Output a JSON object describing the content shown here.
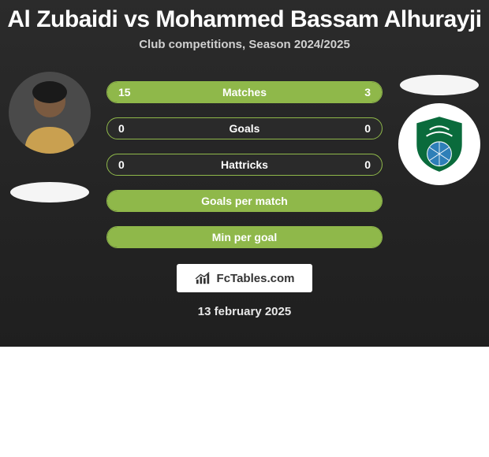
{
  "title": "Al Zubaidi vs Mohammed Bassam Alhurayji",
  "subtitle": "Club competitions, Season 2024/2025",
  "date": "13 february 2025",
  "footer_brand": "FcTables.com",
  "colors": {
    "accent": "#8fb84a",
    "card_bg_top": "#2b2b2b",
    "card_bg_bottom": "#1f1f1f",
    "text": "#ffffff",
    "subtitle": "#d0d0d0",
    "oval": "#f5f5f5",
    "logo_bg": "#ffffff",
    "logo_text": "#333333"
  },
  "player_left": {
    "name": "Al Zubaidi",
    "avatar_bg": "#3a3a3a"
  },
  "player_right": {
    "name": "Mohammed Bassam Alhurayji",
    "crest_bg": "#ffffff",
    "crest_shield": "#0a6b3c",
    "crest_ball": "#2e7fb8"
  },
  "stats": [
    {
      "label": "Matches",
      "left_val": "15",
      "right_val": "3",
      "left_pct": 83,
      "right_pct": 17
    },
    {
      "label": "Goals",
      "left_val": "0",
      "right_val": "0",
      "left_pct": 0,
      "right_pct": 0
    },
    {
      "label": "Hattricks",
      "left_val": "0",
      "right_val": "0",
      "left_pct": 0,
      "right_pct": 0
    },
    {
      "label": "Goals per match",
      "left_val": "",
      "right_val": "",
      "left_pct": 100,
      "right_pct": 0
    },
    {
      "label": "Min per goal",
      "left_val": "",
      "right_val": "",
      "left_pct": 100,
      "right_pct": 0
    }
  ]
}
